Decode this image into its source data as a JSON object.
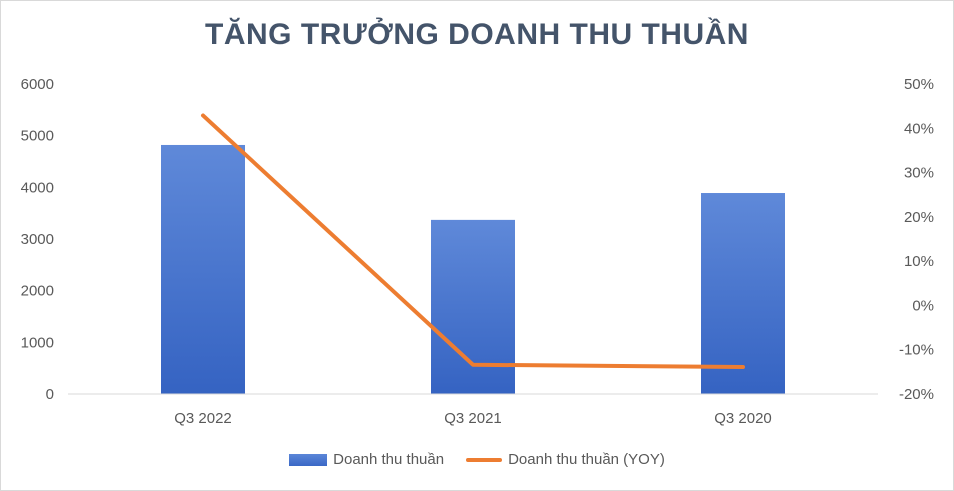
{
  "chart_data": {
    "type": "bar",
    "title": "TĂNG TRƯỞNG DOANH THU THUẦN",
    "categories": [
      "Q3 2022",
      "Q3 2021",
      "Q3 2020"
    ],
    "series": [
      {
        "name": "Doanh thu thuần",
        "type": "bar",
        "axis": "left",
        "values": [
          4820,
          3370,
          3890
        ]
      },
      {
        "name": "Doanh thu thuần (YOY)",
        "type": "line",
        "axis": "right",
        "values": [
          42.9,
          -13.4,
          -13.9
        ]
      }
    ],
    "y_left": {
      "min": 0,
      "max": 6000,
      "ticks": [
        "0",
        "1000",
        "2000",
        "3000",
        "4000",
        "5000",
        "6000"
      ]
    },
    "y_right": {
      "min": -20,
      "max": 50,
      "ticks": [
        "-20%",
        "-10%",
        "0%",
        "10%",
        "20%",
        "30%",
        "40%",
        "50%"
      ]
    },
    "legend_position": "bottom",
    "grid": false,
    "colors": {
      "bar": "#4472c4",
      "line": "#ed7d31",
      "title": "#44546a"
    }
  }
}
